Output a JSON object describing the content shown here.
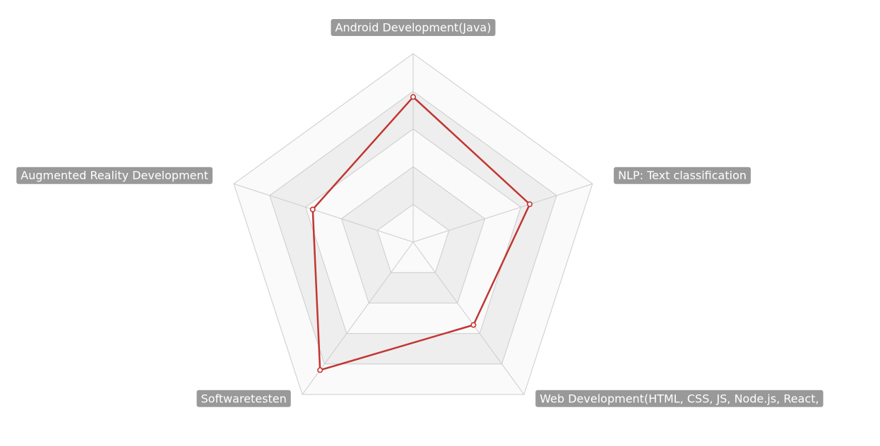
{
  "chart_data": {
    "type": "radar",
    "axes": [
      "Android Development(Java)",
      "NLP: Text classification",
      "Web Development(HTML, CSS, JS, Node.js, React,",
      "Softwaretesten",
      "Augmented Reality Development"
    ],
    "max": 5,
    "split_levels": 5,
    "series": [
      {
        "values": [
          3.85,
          3.25,
          2.72,
          4.2,
          2.8
        ]
      }
    ],
    "colors": {
      "series_line": "#c23531",
      "grid_line": "#cccccc",
      "band_light": "#fafafa",
      "band_dark": "#eeeeee",
      "label_background": "#999999",
      "label_text": "#ffffff"
    }
  }
}
